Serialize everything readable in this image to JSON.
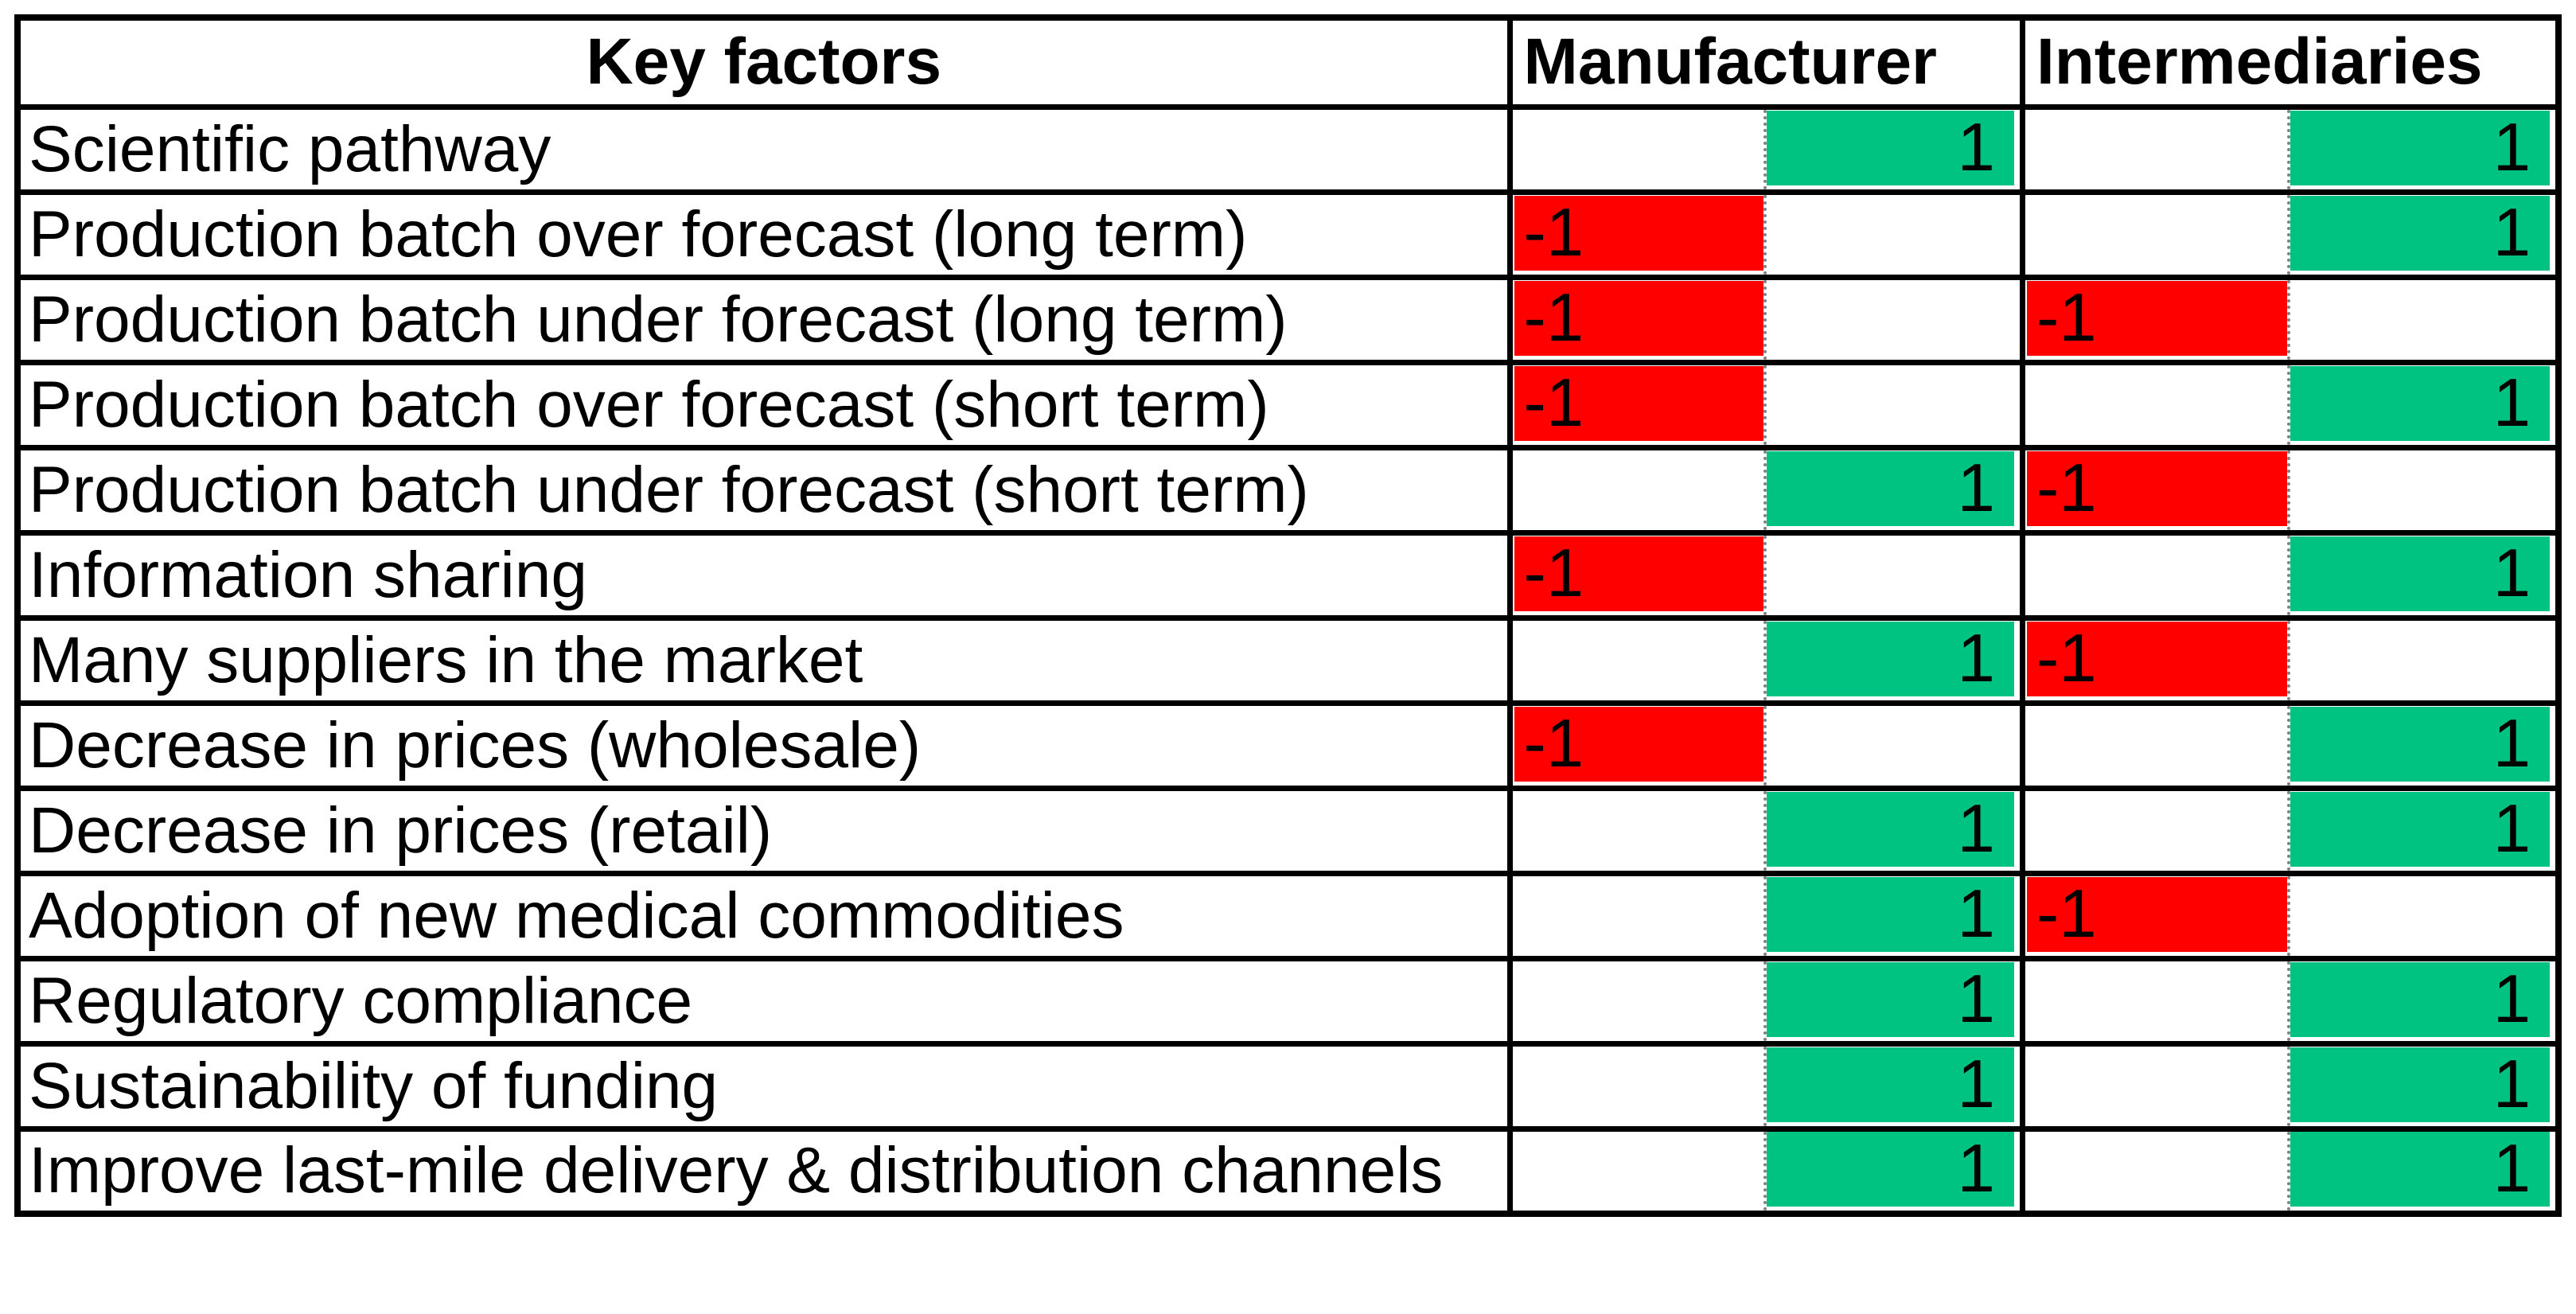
{
  "header": {
    "key_factors": "Key factors",
    "manufacturer": "Manufacturer",
    "intermediaries": "Intermediaries"
  },
  "rows": [
    {
      "factor": "Scientific pathway",
      "m_neg": "",
      "m_pos": "1",
      "i_neg": "",
      "i_pos": "1"
    },
    {
      "factor": "Production batch over forecast (long term)",
      "m_neg": "-1",
      "m_pos": "",
      "i_neg": "",
      "i_pos": "1"
    },
    {
      "factor": "Production batch under forecast (long term)",
      "m_neg": "-1",
      "m_pos": "",
      "i_neg": "-1",
      "i_pos": ""
    },
    {
      "factor": "Production batch over forecast (short term)",
      "m_neg": "-1",
      "m_pos": "",
      "i_neg": "",
      "i_pos": "1"
    },
    {
      "factor": "Production batch under forecast (short term)",
      "m_neg": "",
      "m_pos": "1",
      "i_neg": "-1",
      "i_pos": ""
    },
    {
      "factor": "Information sharing",
      "m_neg": "-1",
      "m_pos": "",
      "i_neg": "",
      "i_pos": "1"
    },
    {
      "factor": "Many suppliers in the market",
      "m_neg": "",
      "m_pos": "1",
      "i_neg": "-1",
      "i_pos": ""
    },
    {
      "factor": "Decrease in prices (wholesale)",
      "m_neg": "-1",
      "m_pos": "",
      "i_neg": "",
      "i_pos": "1"
    },
    {
      "factor": "Decrease in prices (retail)",
      "m_neg": "",
      "m_pos": "1",
      "i_neg": "",
      "i_pos": "1"
    },
    {
      "factor": "Adoption of new medical commodities",
      "m_neg": "",
      "m_pos": "1",
      "i_neg": "-1",
      "i_pos": ""
    },
    {
      "factor": "Regulatory compliance",
      "m_neg": "",
      "m_pos": "1",
      "i_neg": "",
      "i_pos": "1"
    },
    {
      "factor": "Sustainability of funding",
      "m_neg": "",
      "m_pos": "1",
      "i_neg": "",
      "i_pos": "1"
    },
    {
      "factor": "Improve last-mile delivery & distribution channels",
      "m_neg": "",
      "m_pos": "1",
      "i_neg": "",
      "i_pos": "1"
    }
  ],
  "colors": {
    "positive_fill": "#00C281",
    "negative_fill": "#FF0000",
    "grid": "#000000",
    "sub_divider": "#808080"
  },
  "chart_data": {
    "type": "table",
    "title": "Key factors impact matrix: Manufacturer vs Intermediaries",
    "categories": [
      "Scientific pathway",
      "Production batch over forecast (long term)",
      "Production batch under forecast (long term)",
      "Production batch over forecast (short term)",
      "Production batch under forecast (short term)",
      "Information sharing",
      "Many suppliers in the market",
      "Decrease in prices (wholesale)",
      "Decrease in prices (retail)",
      "Adoption of new medical commodities",
      "Regulatory compliance",
      "Sustainability of funding",
      "Improve last-mile delivery & distribution channels"
    ],
    "series": [
      {
        "name": "Manufacturer",
        "values": [
          1,
          -1,
          -1,
          -1,
          1,
          -1,
          1,
          -1,
          1,
          1,
          1,
          1,
          1
        ]
      },
      {
        "name": "Intermediaries",
        "values": [
          1,
          1,
          -1,
          1,
          -1,
          1,
          -1,
          1,
          1,
          -1,
          1,
          1,
          1
        ]
      }
    ],
    "value_encoding": {
      "1": "green fill, right-aligned in positive sub-column",
      "-1": "red fill, left-aligned in negative sub-column"
    },
    "legend_position": "none",
    "grid": true
  }
}
